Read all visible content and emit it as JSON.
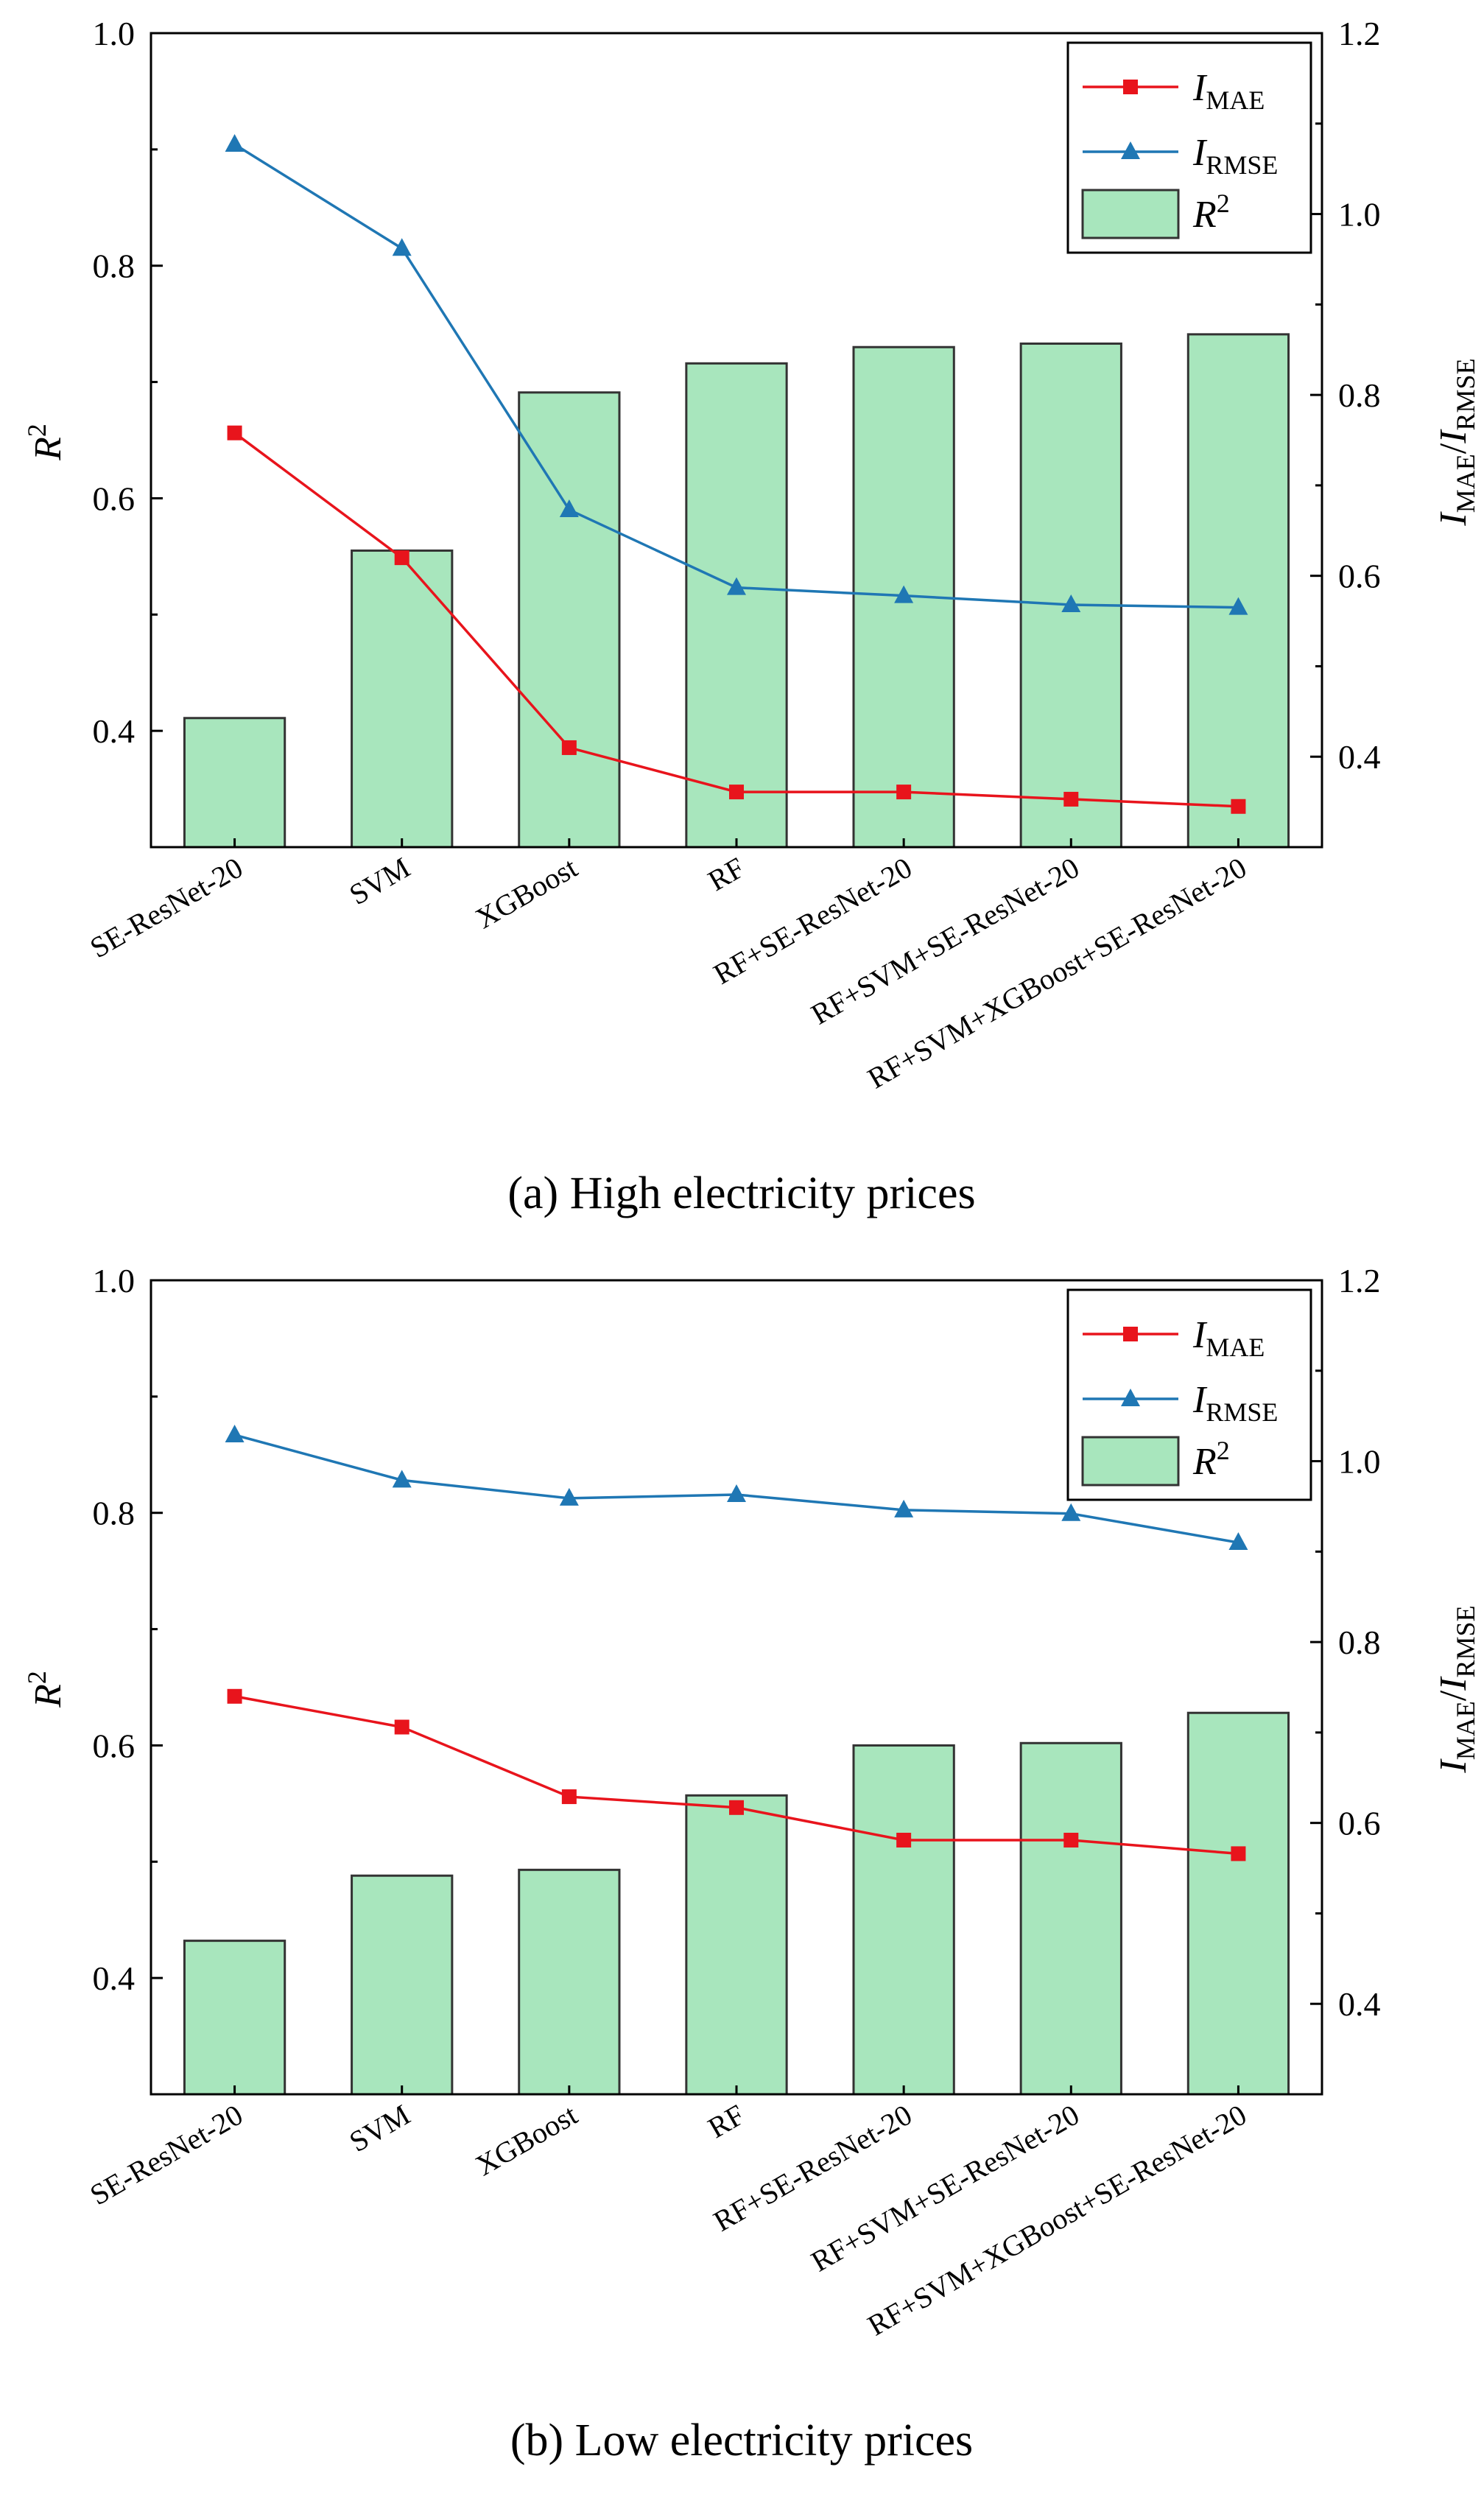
{
  "colors": {
    "mae": "#e8141c",
    "rmse": "#1f77b4",
    "bar_fill": "#a8e6bd",
    "bar_stroke": "#333333"
  },
  "legend": {
    "mae_main": "I",
    "mae_sub": "MAE",
    "rmse_main": "I",
    "rmse_sub": "RMSE",
    "r2_main": "R",
    "r2_sup": "2"
  },
  "axes": {
    "left_main": "R",
    "left_sup": "2",
    "right_p1": "I",
    "right_s1": "MAE",
    "right_sep": "/",
    "right_p2": "I",
    "right_s2": "RMSE"
  },
  "chart_data": [
    {
      "type": "bar",
      "caption": "(a) High electricity prices",
      "categories": [
        "SE-ResNet-20",
        "SVM",
        "XGBoost",
        "RF",
        "RF+SE-ResNet-20",
        "RF+SVM+SE-ResNet-20",
        "RF+SVM+XGBoost+SE-ResNet-20"
      ],
      "ylim_left": [
        0.3,
        1.0
      ],
      "ylim_right": [
        0.3,
        1.2
      ],
      "left_ticks": [
        "0.4",
        "0.6",
        "0.8",
        "1.0"
      ],
      "right_ticks": [
        "0.4",
        "0.6",
        "0.8",
        "1.0",
        "1.2"
      ],
      "series": [
        {
          "name": "R2",
          "axis": "left",
          "kind": "bar",
          "values": [
            0.411,
            0.555,
            0.691,
            0.716,
            0.73,
            0.733,
            0.741
          ]
        },
        {
          "name": "I_MAE",
          "axis": "right",
          "kind": "line",
          "marker": "square",
          "values": [
            0.758,
            0.62,
            0.41,
            0.361,
            0.361,
            0.353,
            0.345
          ]
        },
        {
          "name": "I_RMSE",
          "axis": "right",
          "kind": "line",
          "marker": "triangle",
          "values": [
            1.077,
            0.962,
            0.673,
            0.587,
            0.578,
            0.568,
            0.565
          ]
        }
      ]
    },
    {
      "type": "bar",
      "caption": "(b) Low electricity prices",
      "categories": [
        "SE-ResNet-20",
        "SVM",
        "XGBoost",
        "RF",
        "RF+SE-ResNet-20",
        "RF+SVM+SE-ResNet-20",
        "RF+SVM+XGBoost+SE-ResNet-20"
      ],
      "ylim_left": [
        0.3,
        1.0
      ],
      "ylim_right": [
        0.3,
        1.2
      ],
      "left_ticks": [
        "0.4",
        "0.6",
        "0.8",
        "1.0"
      ],
      "right_ticks": [
        "0.4",
        "0.6",
        "0.8",
        "1.0",
        "1.2"
      ],
      "series": [
        {
          "name": "R2",
          "axis": "left",
          "kind": "bar",
          "values": [
            0.432,
            0.488,
            0.493,
            0.557,
            0.6,
            0.602,
            0.628
          ]
        },
        {
          "name": "I_MAE",
          "axis": "right",
          "kind": "line",
          "marker": "square",
          "values": [
            0.74,
            0.706,
            0.629,
            0.617,
            0.581,
            0.581,
            0.566
          ]
        },
        {
          "name": "I_RMSE",
          "axis": "right",
          "kind": "line",
          "marker": "triangle",
          "values": [
            1.029,
            0.979,
            0.959,
            0.963,
            0.946,
            0.942,
            0.91
          ]
        }
      ]
    }
  ]
}
